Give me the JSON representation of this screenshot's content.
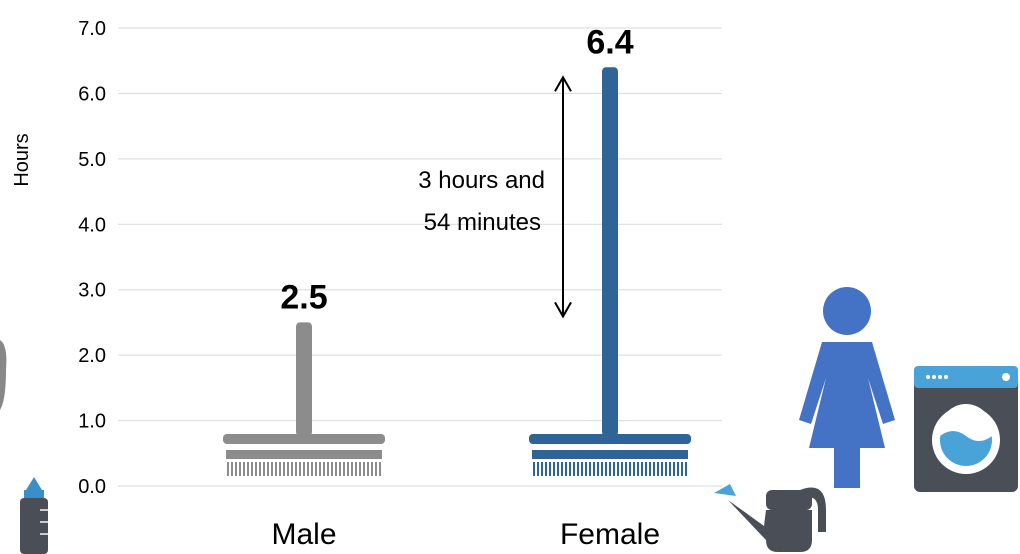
{
  "chart_data": {
    "type": "bar",
    "ylabel": "Hours",
    "categories": [
      "Male",
      "Female"
    ],
    "values": [
      2.5,
      6.4
    ],
    "value_labels": [
      "2.5",
      "6.4"
    ],
    "ylim": [
      0,
      7
    ],
    "yticks": [
      "0.0",
      "1.0",
      "2.0",
      "3.0",
      "4.0",
      "5.0",
      "6.0",
      "7.0"
    ],
    "grid": true,
    "colors": [
      "#8c8c8c",
      "#2f6496"
    ],
    "annotation": {
      "lines": [
        "3 hours and",
        "54 minutes"
      ],
      "from": 2.5,
      "to": 6.4
    }
  },
  "icons": [
    "baby-bottle-icon",
    "woman-icon",
    "washing-machine-icon",
    "watering-can-icon"
  ],
  "icon_colors": {
    "woman": "#4472c4",
    "washer_top": "#4aa3d8",
    "can": "#4a4f57",
    "bottle": "#3a8fc9"
  }
}
